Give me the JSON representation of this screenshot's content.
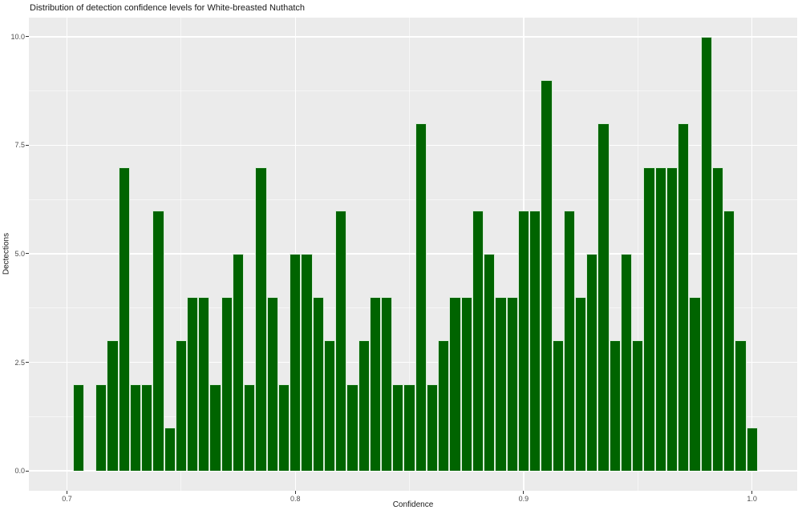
{
  "title": "Distribution of detection confidence levels for White-breasted Nuthatch",
  "chart_data": {
    "type": "bar",
    "subtype": "histogram",
    "title": "Distribution of detection confidence levels for White-breasted Nuthatch",
    "xlabel": "Confidence",
    "ylabel": "Dectections",
    "legend": "none",
    "grid": "on",
    "bin_width": 0.005,
    "bin_centers": [
      0.705,
      0.71,
      0.715,
      0.72,
      0.725,
      0.73,
      0.735,
      0.74,
      0.745,
      0.75,
      0.755,
      0.76,
      0.765,
      0.77,
      0.775,
      0.78,
      0.785,
      0.79,
      0.795,
      0.8,
      0.805,
      0.81,
      0.815,
      0.82,
      0.825,
      0.83,
      0.835,
      0.84,
      0.845,
      0.85,
      0.855,
      0.86,
      0.865,
      0.87,
      0.875,
      0.88,
      0.885,
      0.89,
      0.895,
      0.9,
      0.905,
      0.91,
      0.915,
      0.92,
      0.925,
      0.93,
      0.935,
      0.94,
      0.945,
      0.95,
      0.955,
      0.96,
      0.965,
      0.97,
      0.975,
      0.98,
      0.985,
      0.99,
      0.995,
      1.0
    ],
    "counts": [
      2,
      0,
      2,
      3,
      7,
      2,
      2,
      6,
      1,
      3,
      4,
      4,
      2,
      4,
      5,
      2,
      7,
      4,
      2,
      5,
      5,
      4,
      3,
      6,
      2,
      3,
      4,
      4,
      2,
      2,
      8,
      2,
      3,
      4,
      4,
      6,
      5,
      4,
      4,
      6,
      6,
      9,
      3,
      6,
      4,
      5,
      8,
      3,
      5,
      3,
      7,
      7,
      7,
      8,
      4,
      10,
      7,
      6,
      3,
      1
    ],
    "x_ticks": [
      {
        "v": 0.7,
        "label": "0.7"
      },
      {
        "v": 0.8,
        "label": "0.8"
      },
      {
        "v": 0.9,
        "label": "0.9"
      },
      {
        "v": 1.0,
        "label": "1.0"
      }
    ],
    "y_ticks": [
      {
        "v": 0,
        "label": "0.0"
      },
      {
        "v": 2.5,
        "label": "2.5"
      },
      {
        "v": 5,
        "label": "5.0"
      },
      {
        "v": 7.5,
        "label": "7.5"
      },
      {
        "v": 10,
        "label": "10.0"
      }
    ],
    "x_minor": [
      0.75,
      0.85,
      0.95
    ],
    "y_minor": [
      1.25,
      3.75,
      6.25,
      8.75
    ],
    "xlim": [
      0.6833,
      1.0198
    ],
    "ylim": [
      -0.46,
      10.44
    ],
    "colors": {
      "bar_fill": "#006400",
      "bar_edge": "#d9ecd9",
      "panel_background": "#EBEBEB",
      "grid_major": "#ffffff",
      "grid_minor": "#ffffff",
      "tick_mark": "#333333",
      "tick_label": "#4D4D4D",
      "text": "#1a1a1a"
    }
  }
}
